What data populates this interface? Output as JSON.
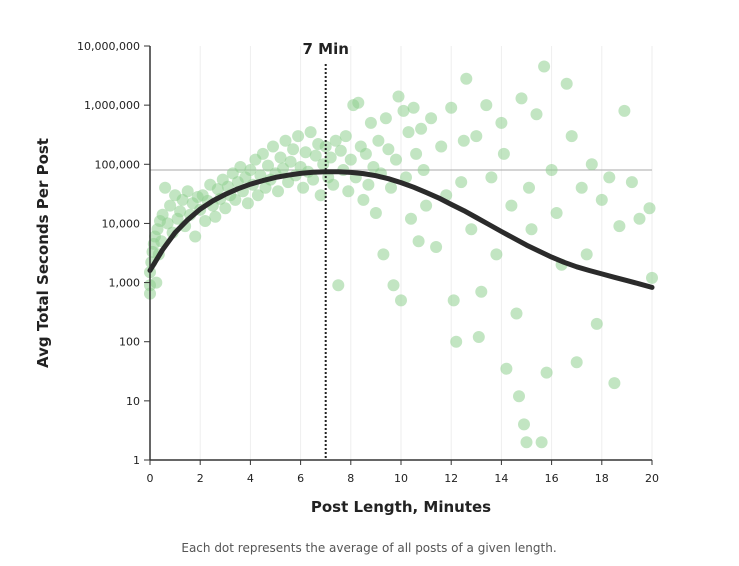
{
  "chart_data": {
    "type": "scatter",
    "title": "",
    "xlabel": "Post Length, Minutes",
    "ylabel": "Avg Total Seconds Per Post",
    "x_scale": "linear",
    "y_scale": "log",
    "xlim": [
      0,
      20
    ],
    "ylim": [
      1,
      10000000
    ],
    "x_ticks": [
      0,
      2,
      4,
      6,
      8,
      10,
      12,
      14,
      16,
      18,
      20
    ],
    "x_tick_labels": [
      "0",
      "2",
      "4",
      "6",
      "8",
      "10",
      "12",
      "14",
      "16",
      "18",
      "20"
    ],
    "y_ticks": [
      1,
      10,
      100,
      1000,
      10000,
      100000,
      1000000,
      10000000
    ],
    "y_tick_labels": [
      "1",
      "10",
      "100",
      "1,000",
      "10,000",
      "100,000",
      "1,000,000",
      "10,000,000"
    ],
    "grid": {
      "vertical": true,
      "horizontal": false
    },
    "reference_line": {
      "y": 80000
    },
    "annotation": {
      "x": 7,
      "label": "7 Min",
      "style": "dotted-vertical"
    },
    "caption": "Each dot represents the average of all posts of a given length.",
    "colors": {
      "dots": "#8fd08f",
      "curve": "#2b2b2b",
      "grid": "#eeeeee",
      "axis": "#333333",
      "reference_line": "#aaaaaa"
    },
    "series": [
      {
        "kind": "points",
        "points": [
          [
            0.0,
            650
          ],
          [
            0.0,
            900
          ],
          [
            0.0,
            1500
          ],
          [
            0.05,
            2200
          ],
          [
            0.1,
            3300
          ],
          [
            0.15,
            4500
          ],
          [
            0.2,
            6000
          ],
          [
            0.25,
            1000
          ],
          [
            0.3,
            8000
          ],
          [
            0.35,
            3000
          ],
          [
            0.4,
            11000
          ],
          [
            0.45,
            5000
          ],
          [
            0.5,
            14000
          ],
          [
            0.6,
            40000
          ],
          [
            0.7,
            10000
          ],
          [
            0.8,
            20000
          ],
          [
            0.9,
            7000
          ],
          [
            1.0,
            30000
          ],
          [
            1.1,
            12000
          ],
          [
            1.2,
            16000
          ],
          [
            1.3,
            25000
          ],
          [
            1.4,
            9000
          ],
          [
            1.5,
            35000
          ],
          [
            1.6,
            14000
          ],
          [
            1.7,
            22000
          ],
          [
            1.8,
            6000
          ],
          [
            1.9,
            28000
          ],
          [
            2.0,
            17000
          ],
          [
            2.1,
            30000
          ],
          [
            2.2,
            11000
          ],
          [
            2.3,
            24000
          ],
          [
            2.4,
            45000
          ],
          [
            2.5,
            20000
          ],
          [
            2.6,
            13000
          ],
          [
            2.7,
            38000
          ],
          [
            2.8,
            26000
          ],
          [
            2.9,
            55000
          ],
          [
            3.0,
            18000
          ],
          [
            3.1,
            42000
          ],
          [
            3.2,
            30000
          ],
          [
            3.3,
            70000
          ],
          [
            3.4,
            25000
          ],
          [
            3.5,
            50000
          ],
          [
            3.6,
            90000
          ],
          [
            3.7,
            35000
          ],
          [
            3.8,
            60000
          ],
          [
            3.9,
            22000
          ],
          [
            4.0,
            80000
          ],
          [
            4.1,
            45000
          ],
          [
            4.2,
            120000
          ],
          [
            4.3,
            30000
          ],
          [
            4.4,
            65000
          ],
          [
            4.5,
            150000
          ],
          [
            4.6,
            40000
          ],
          [
            4.7,
            95000
          ],
          [
            4.8,
            55000
          ],
          [
            4.9,
            200000
          ],
          [
            5.0,
            70000
          ],
          [
            5.1,
            35000
          ],
          [
            5.2,
            130000
          ],
          [
            5.3,
            85000
          ],
          [
            5.4,
            250000
          ],
          [
            5.5,
            50000
          ],
          [
            5.6,
            110000
          ],
          [
            5.7,
            180000
          ],
          [
            5.8,
            65000
          ],
          [
            5.9,
            300000
          ],
          [
            6.0,
            90000
          ],
          [
            6.1,
            40000
          ],
          [
            6.2,
            160000
          ],
          [
            6.3,
            75000
          ],
          [
            6.4,
            350000
          ],
          [
            6.5,
            55000
          ],
          [
            6.6,
            140000
          ],
          [
            6.7,
            220000
          ],
          [
            6.8,
            30000
          ],
          [
            6.9,
            100000
          ],
          [
            7.0,
            200000
          ],
          [
            7.1,
            60000
          ],
          [
            7.2,
            130000
          ],
          [
            7.3,
            45000
          ],
          [
            7.4,
            250000
          ],
          [
            7.5,
            900
          ],
          [
            7.6,
            170000
          ],
          [
            7.7,
            80000
          ],
          [
            7.8,
            300000
          ],
          [
            7.9,
            35000
          ],
          [
            8.0,
            120000
          ],
          [
            8.1,
            1000000
          ],
          [
            8.2,
            60000
          ],
          [
            8.3,
            1100000
          ],
          [
            8.4,
            200000
          ],
          [
            8.5,
            25000
          ],
          [
            8.6,
            150000
          ],
          [
            8.7,
            45000
          ],
          [
            8.8,
            500000
          ],
          [
            8.9,
            90000
          ],
          [
            9.0,
            15000
          ],
          [
            9.1,
            250000
          ],
          [
            9.2,
            70000
          ],
          [
            9.3,
            3000
          ],
          [
            9.4,
            600000
          ],
          [
            9.5,
            180000
          ],
          [
            9.6,
            40000
          ],
          [
            9.7,
            900
          ],
          [
            9.8,
            120000
          ],
          [
            9.9,
            1400000
          ],
          [
            10.0,
            500
          ],
          [
            10.1,
            800000
          ],
          [
            10.2,
            60000
          ],
          [
            10.3,
            350000
          ],
          [
            10.4,
            12000
          ],
          [
            10.5,
            900000
          ],
          [
            10.6,
            150000
          ],
          [
            10.7,
            5000
          ],
          [
            10.8,
            400000
          ],
          [
            10.9,
            80000
          ],
          [
            11.0,
            20000
          ],
          [
            11.2,
            600000
          ],
          [
            11.4,
            4000
          ],
          [
            11.6,
            200000
          ],
          [
            11.8,
            30000
          ],
          [
            12.0,
            900000
          ],
          [
            12.1,
            500
          ],
          [
            12.2,
            100
          ],
          [
            12.4,
            50000
          ],
          [
            12.5,
            250000
          ],
          [
            12.6,
            2800000
          ],
          [
            12.8,
            8000
          ],
          [
            13.0,
            300000
          ],
          [
            13.1,
            120
          ],
          [
            13.2,
            700
          ],
          [
            13.4,
            1000000
          ],
          [
            13.6,
            60000
          ],
          [
            13.8,
            3000
          ],
          [
            14.0,
            500000
          ],
          [
            14.1,
            150000
          ],
          [
            14.2,
            35
          ],
          [
            14.4,
            20000
          ],
          [
            14.6,
            300
          ],
          [
            14.7,
            12
          ],
          [
            14.8,
            1300000
          ],
          [
            14.9,
            4
          ],
          [
            15.0,
            2
          ],
          [
            15.1,
            40000
          ],
          [
            15.2,
            8000
          ],
          [
            15.4,
            700000
          ],
          [
            15.6,
            2
          ],
          [
            15.7,
            4500000
          ],
          [
            15.8,
            30
          ],
          [
            16.0,
            80000
          ],
          [
            16.2,
            15000
          ],
          [
            16.4,
            2000
          ],
          [
            16.6,
            2300000
          ],
          [
            16.8,
            300000
          ],
          [
            17.0,
            45
          ],
          [
            17.2,
            40000
          ],
          [
            17.4,
            3000
          ],
          [
            17.6,
            100000
          ],
          [
            17.8,
            200
          ],
          [
            18.0,
            25000
          ],
          [
            18.3,
            60000
          ],
          [
            18.5,
            20
          ],
          [
            18.7,
            9000
          ],
          [
            18.9,
            800000
          ],
          [
            19.2,
            50000
          ],
          [
            19.5,
            12000
          ],
          [
            19.9,
            18000
          ],
          [
            20.0,
            1200
          ]
        ]
      },
      {
        "kind": "fit_curve",
        "points": [
          [
            0,
            1600
          ],
          [
            0.5,
            3600
          ],
          [
            1,
            7000
          ],
          [
            1.5,
            11500
          ],
          [
            2,
            17500
          ],
          [
            2.5,
            24000
          ],
          [
            3,
            31000
          ],
          [
            3.5,
            38500
          ],
          [
            4,
            46000
          ],
          [
            4.5,
            53000
          ],
          [
            5,
            60000
          ],
          [
            5.5,
            65500
          ],
          [
            6,
            70000
          ],
          [
            6.5,
            73500
          ],
          [
            7,
            75000
          ],
          [
            7.5,
            75000
          ],
          [
            8,
            73000
          ],
          [
            8.5,
            69500
          ],
          [
            9,
            64000
          ],
          [
            9.5,
            57000
          ],
          [
            10,
            49000
          ],
          [
            10.5,
            41000
          ],
          [
            11,
            33500
          ],
          [
            11.5,
            27000
          ],
          [
            12,
            21000
          ],
          [
            12.5,
            16500
          ],
          [
            13,
            12600
          ],
          [
            13.5,
            9600
          ],
          [
            14,
            7300
          ],
          [
            14.5,
            5600
          ],
          [
            15,
            4300
          ],
          [
            15.5,
            3400
          ],
          [
            16,
            2700
          ],
          [
            16.5,
            2200
          ],
          [
            17,
            1850
          ],
          [
            17.5,
            1600
          ],
          [
            18,
            1400
          ],
          [
            18.5,
            1230
          ],
          [
            19,
            1080
          ],
          [
            19.5,
            950
          ],
          [
            20,
            830
          ]
        ]
      }
    ]
  }
}
